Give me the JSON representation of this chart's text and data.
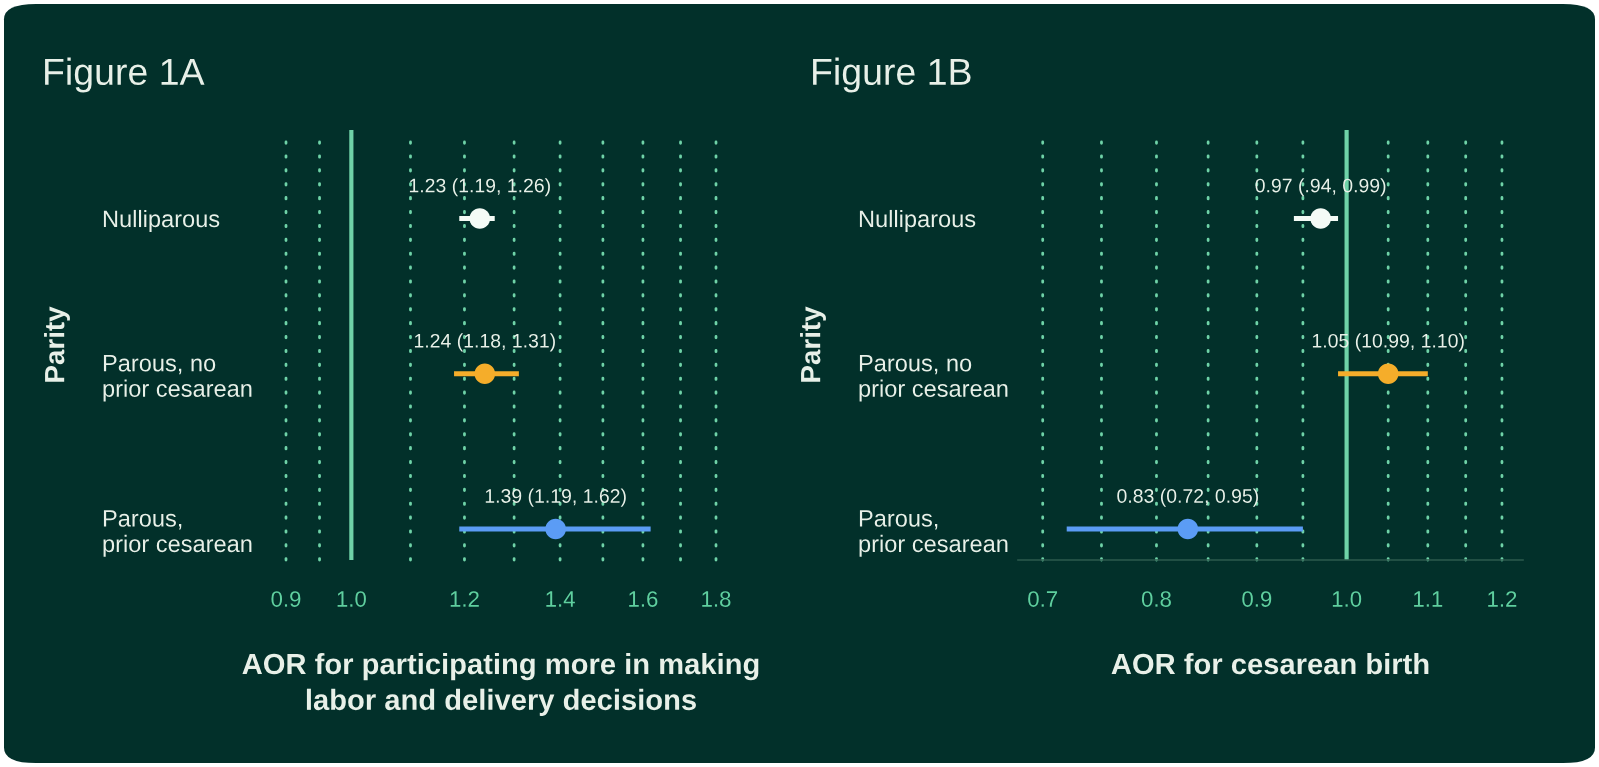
{
  "chart_data": [
    {
      "type": "scatter",
      "orientation": "horizontal",
      "title": "Figure 1A",
      "xlabel": "AOR for participating more in making\nlabor and delivery decisions",
      "ylabel": "Parity",
      "categories": [
        "Nulliparous",
        "Parous, no\nprior cesarean",
        "Parous,\nprior cesarean"
      ],
      "values": [
        1.23,
        1.24,
        1.39
      ],
      "errors": [
        [
          1.19,
          1.26
        ],
        [
          1.18,
          1.31
        ],
        [
          1.19,
          1.62
        ]
      ],
      "colors": [
        "#f4fbf6",
        "#f5ad2a",
        "#5b9cf5"
      ],
      "value_labels": [
        "1.23 (1.19, 1.26)",
        "1.24 (1.18, 1.31)",
        "1.39 (1.19, 1.62)"
      ],
      "log": "x",
      "xlim": [
        0.9,
        1.8
      ],
      "xticks": [
        0.9,
        {
          "value": 0.95,
          "label": null
        },
        {
          "value": 1.0,
          "label": "1.0"
        },
        {
          "value": 1.1,
          "label": null
        },
        1.2,
        {
          "value": 1.3,
          "label": null
        },
        1.4,
        {
          "value": 1.5,
          "label": null
        },
        1.6,
        {
          "value": 1.7,
          "label": null
        },
        1.8
      ],
      "ref_lines": [
        {
          "axis": "x",
          "value": 1.0,
          "color": "#6fd3a8",
          "line_style": "solid"
        }
      ],
      "grid": "x",
      "marker": "circle",
      "legend": false
    },
    {
      "type": "scatter",
      "orientation": "horizontal",
      "title": "Figure 1B",
      "xlabel": "AOR for cesarean birth",
      "ylabel": "Parity",
      "categories": [
        "Nulliparous",
        "Parous, no\nprior cesarean",
        "Parous,\nprior cesarean"
      ],
      "values": [
        0.97,
        1.05,
        0.83
      ],
      "errors": [
        [
          0.94,
          0.99
        ],
        [
          0.99,
          1.1
        ],
        [
          0.72,
          0.95
        ]
      ],
      "colors": [
        "#f4fbf6",
        "#f5ad2a",
        "#5b9cf5"
      ],
      "value_labels": [
        "0.97 (.94, 0.99)",
        "1.05 (10.99, 1.10)",
        "0.83 (0.72, 0.95)"
      ],
      "log": "x",
      "xlim": [
        0.68,
        1.23
      ],
      "xticks": [
        0.7,
        {
          "value": 0.75,
          "label": null
        },
        0.8,
        {
          "value": 0.85,
          "label": null
        },
        0.9,
        {
          "value": 0.95,
          "label": null
        },
        {
          "value": 1.0,
          "label": "1.0"
        },
        {
          "value": 1.05,
          "label": null
        },
        1.1,
        {
          "value": 1.15,
          "label": null
        },
        1.2
      ],
      "ref_lines": [
        {
          "axis": "x",
          "value": 1.0,
          "color": "#6fd3a8",
          "line_style": "solid"
        }
      ],
      "grid": "x",
      "marker": "circle",
      "legend": false
    }
  ]
}
